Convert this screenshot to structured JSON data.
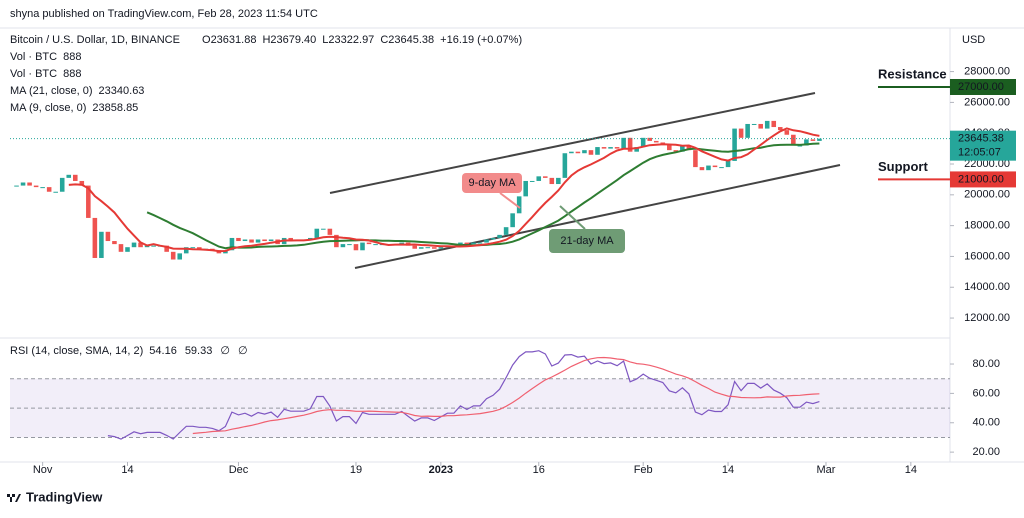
{
  "header": {
    "byline": "shyna published on TradingView.com, Feb 28, 2023 11:54 UTC",
    "currency": "USD",
    "symbol": "Bitcoin / U.S. Dollar, 1D, BINANCE",
    "ohlc": [
      [
        "O",
        "23631.88"
      ],
      [
        "H",
        "23679.40"
      ],
      [
        "L",
        "23322.97"
      ],
      [
        "C",
        "23645.38"
      ],
      [
        "",
        "+16.19 (+0.07%)"
      ]
    ],
    "studies": [
      [
        "Vol · BTC",
        "888"
      ],
      [
        "Vol · BTC",
        "888"
      ],
      [
        "MA (21, close, 0)",
        "23340.63"
      ],
      [
        "MA (9, close, 0)",
        "23858.85"
      ]
    ]
  },
  "chart_data": {
    "type": "candlestick",
    "x": [
      -4,
      -3,
      -2,
      -1,
      0,
      1,
      2,
      3,
      4,
      5,
      6,
      7,
      8,
      9,
      10,
      11,
      12,
      13,
      14,
      15,
      16,
      17,
      18,
      19,
      20,
      21,
      22,
      23,
      24,
      25,
      26,
      27,
      28,
      29,
      30,
      31,
      32,
      33,
      34,
      35,
      36,
      37,
      38,
      39,
      40,
      41,
      42,
      43,
      44,
      45,
      46,
      47,
      48,
      49,
      50,
      51,
      52,
      53,
      54,
      55,
      56,
      57,
      58,
      59,
      60,
      61,
      62,
      63,
      64,
      65,
      66,
      67,
      68,
      69,
      70,
      71,
      72,
      73,
      74,
      75,
      76,
      77,
      78,
      79,
      80,
      81,
      82,
      83,
      84,
      85,
      86,
      87,
      88,
      89,
      90,
      91,
      92,
      93,
      94,
      95,
      96,
      97,
      98,
      99,
      100,
      101,
      102,
      103,
      104,
      105,
      106,
      107,
      108,
      109,
      110,
      111,
      112,
      113,
      114,
      115,
      116,
      117,
      118,
      119
    ],
    "close": [
      20600,
      20800,
      20600,
      20500,
      20500,
      20200,
      20200,
      21100,
      21300,
      20900,
      20600,
      18500,
      15900,
      17600,
      17000,
      16800,
      16300,
      16600,
      16900,
      16600,
      16700,
      16700,
      16700,
      16300,
      15800,
      16200,
      16600,
      16600,
      16500,
      16500,
      16400,
      16200,
      16400,
      17200,
      17000,
      17100,
      16900,
      17100,
      17000,
      17100,
      16800,
      17200,
      17100,
      17100,
      17100,
      17200,
      17800,
      17800,
      17400,
      16600,
      16800,
      16800,
      16400,
      16900,
      16800,
      16800,
      16800,
      16800,
      16800,
      16900,
      16700,
      16500,
      16600,
      16600,
      16500,
      16600,
      16700,
      16700,
      16900,
      16800,
      16900,
      16900,
      17100,
      17200,
      17400,
      17900,
      18800,
      19900,
      20900,
      20900,
      21200,
      21100,
      20700,
      21100,
      22700,
      22800,
      22700,
      22900,
      22600,
      23100,
      23000,
      23100,
      23000,
      23700,
      22800,
      23100,
      23700,
      23500,
      23400,
      23300,
      22900,
      22800,
      23200,
      22900,
      21800,
      21600,
      21900,
      21800,
      21800,
      22200,
      24300,
      23700,
      24600,
      24600,
      24300,
      24800,
      24400,
      24200,
      23900,
      23200,
      23200,
      23600,
      23500,
      23645.38
    ],
    "up_color": "#26a69a",
    "down_color": "#ef5350",
    "xlim": [
      -5,
      139
    ],
    "xticks": [
      {
        "value": 0,
        "label": "Nov"
      },
      {
        "value": 13,
        "label": "14"
      },
      {
        "value": 30,
        "label": "Dec"
      },
      {
        "value": 48,
        "label": "19"
      },
      {
        "value": 61,
        "label": "2023"
      },
      {
        "value": 76,
        "label": "16"
      },
      {
        "value": 92,
        "label": "Feb"
      },
      {
        "value": 105,
        "label": "14"
      },
      {
        "value": 120,
        "label": "Mar"
      },
      {
        "value": 133,
        "label": "14"
      }
    ],
    "ylim": [
      10900,
      30700
    ],
    "yticks": [
      {
        "value": 12000,
        "label": "12000.00"
      },
      {
        "value": 14000,
        "label": "14000.00"
      },
      {
        "value": 16000,
        "label": "16000.00"
      },
      {
        "value": 18000,
        "label": "18000.00"
      },
      {
        "value": 20000,
        "label": "20000.00"
      },
      {
        "value": 22000,
        "label": "22000.00"
      },
      {
        "value": 24000,
        "label": "24000.00"
      },
      {
        "value": 26000,
        "label": "26000.00"
      },
      {
        "value": 28000,
        "label": "28000.00"
      }
    ],
    "last_price": {
      "value": 23645.38,
      "label": "23645.38",
      "countdown": "12:05:07"
    },
    "levels": [
      {
        "name": "Resistance",
        "value": 27000,
        "label": "27000.00",
        "color": "#1b5e20"
      },
      {
        "name": "Support",
        "value": 21000,
        "label": "21000.00",
        "color": "#e53935"
      }
    ],
    "annotations": [
      "9-day MA",
      "21-day MA"
    ],
    "rsi": {
      "title": "RSI (14, close, SMA, 14, 2)",
      "values_text": [
        "54.16",
        "59.33",
        "∅",
        "∅"
      ],
      "ylim": [
        16,
        95
      ],
      "yticks": [
        {
          "value": 20,
          "label": "20.00"
        },
        {
          "value": 40,
          "label": "40.00"
        },
        {
          "value": 60,
          "label": "60.00"
        },
        {
          "value": 80,
          "label": "80.00"
        }
      ]
    }
  },
  "footer": "TradingView"
}
